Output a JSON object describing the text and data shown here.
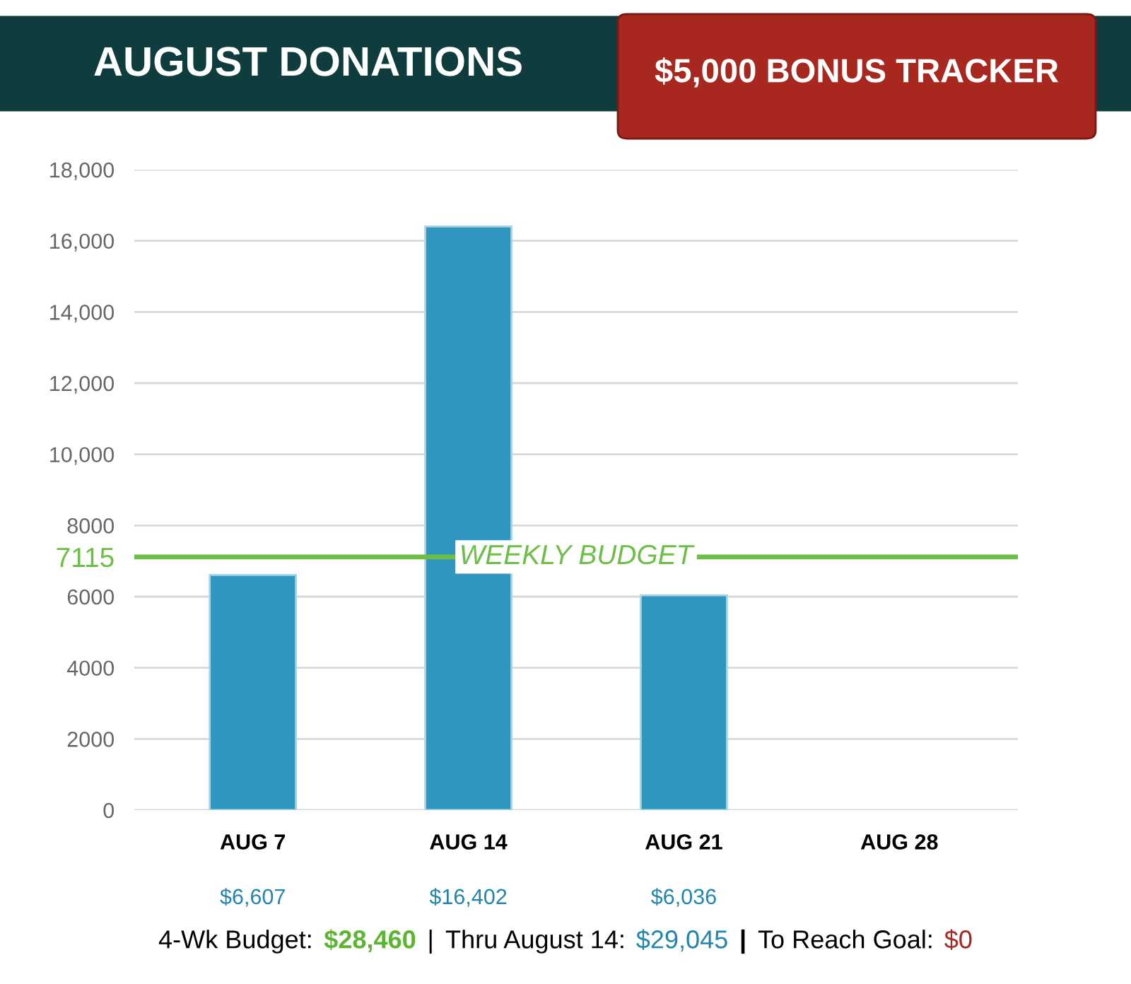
{
  "chart_data": {
    "type": "bar",
    "title": "AUGUST DONATIONS",
    "subtitle": "$5,000 BONUS TRACKER",
    "categories": [
      "AUG 7",
      "AUG 14",
      "AUG 21",
      "AUG 28"
    ],
    "values": [
      6607,
      16402,
      6036,
      null
    ],
    "value_labels": [
      "$6,607",
      "$16,402",
      "$6,036",
      null
    ],
    "color": "#2f97bf",
    "ylim": [
      0,
      18000
    ],
    "yticks": [
      0,
      2000,
      4000,
      6000,
      7115,
      8000,
      {
        "value": 10000,
        "label": "10,000"
      },
      {
        "value": 12000,
        "label": "12,000"
      },
      {
        "value": 14000,
        "label": "14,000"
      },
      {
        "value": 16000,
        "label": "16,000"
      },
      {
        "value": 18000,
        "label": "18,000"
      }
    ],
    "grid": "y",
    "ref_lines": [
      {
        "axis": "y",
        "value": 7115,
        "label": "WEEKLY BUDGET",
        "color": "#6cbf45"
      }
    ],
    "annotations": [
      "4-Wk Budget:",
      "$28,460",
      "|",
      "Thru August 14:",
      "$29,045",
      "|",
      "To Reach Goal:",
      "$0"
    ]
  }
}
